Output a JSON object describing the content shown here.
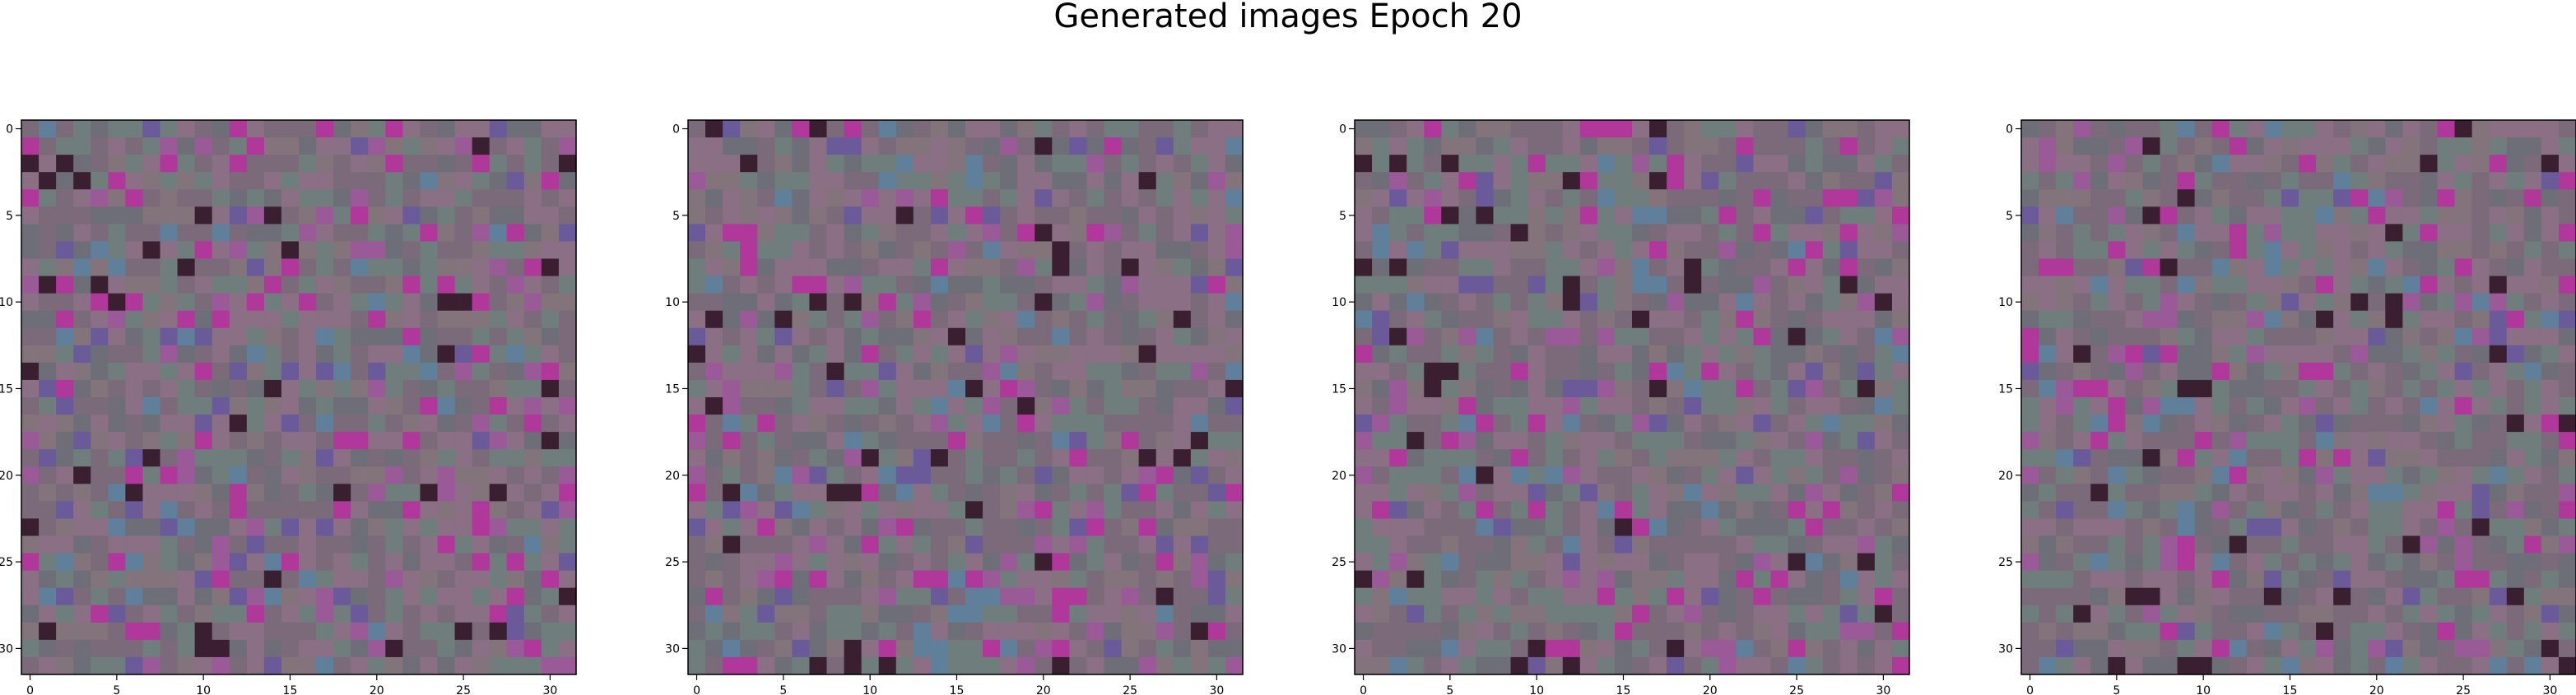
{
  "figure": {
    "title": "Generated images Epoch 20"
  },
  "chart_data": [
    {
      "type": "heatmap",
      "panel": 1,
      "rendering": "32x32 RGB image (imshow)",
      "xlim": [
        -0.5,
        31.5
      ],
      "ylim": [
        31.5,
        -0.5
      ],
      "x_ticks": [
        0,
        5,
        10,
        15,
        20,
        25,
        30
      ],
      "y_ticks": [
        0,
        5,
        10,
        15,
        20,
        25,
        30
      ],
      "grid": false,
      "palette": [
        "#7a6a7a",
        "#8a6f85",
        "#6f7e7c",
        "#9a5a98",
        "#b0389b",
        "#6a5a9a",
        "#5f7f9a",
        "#3a1f30",
        "#6e6e78",
        "#83737b"
      ]
    },
    {
      "type": "heatmap",
      "panel": 2,
      "rendering": "32x32 RGB image (imshow)",
      "xlim": [
        -0.5,
        31.5
      ],
      "ylim": [
        31.5,
        -0.5
      ],
      "x_ticks": [
        0,
        5,
        10,
        15,
        20,
        25,
        30
      ],
      "y_ticks": [
        0,
        5,
        10,
        15,
        20,
        25,
        30
      ],
      "grid": false,
      "palette": [
        "#7a6a7a",
        "#8a6f85",
        "#6f7e7c",
        "#9a5a98",
        "#b0389b",
        "#6a5a9a",
        "#5f7f9a",
        "#3a1f30",
        "#6e6e78",
        "#83737b"
      ]
    },
    {
      "type": "heatmap",
      "panel": 3,
      "rendering": "32x32 RGB image (imshow)",
      "xlim": [
        -0.5,
        31.5
      ],
      "ylim": [
        31.5,
        -0.5
      ],
      "x_ticks": [
        0,
        5,
        10,
        15,
        20,
        25,
        30
      ],
      "y_ticks": [
        0,
        5,
        10,
        15,
        20,
        25,
        30
      ],
      "grid": false,
      "palette": [
        "#7a6a7a",
        "#8a6f85",
        "#6f7e7c",
        "#9a5a98",
        "#b0389b",
        "#6a5a9a",
        "#5f7f9a",
        "#3a1f30",
        "#6e6e78",
        "#83737b"
      ]
    },
    {
      "type": "heatmap",
      "panel": 4,
      "rendering": "32x32 RGB image (imshow)",
      "xlim": [
        -0.5,
        31.5
      ],
      "ylim": [
        31.5,
        -0.5
      ],
      "x_ticks": [
        0,
        5,
        10,
        15,
        20,
        25,
        30
      ],
      "y_ticks": [
        0,
        5,
        10,
        15,
        20,
        25,
        30
      ],
      "grid": false,
      "palette": [
        "#7a6a7a",
        "#8a6f85",
        "#6f7e7c",
        "#9a5a98",
        "#b0389b",
        "#6a5a9a",
        "#5f7f9a",
        "#3a1f30",
        "#6e6e78",
        "#83737b"
      ]
    }
  ]
}
